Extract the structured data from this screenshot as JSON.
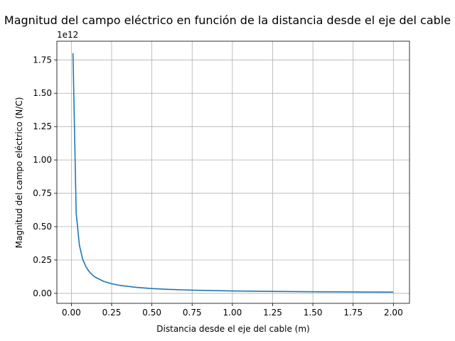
{
  "chart_data": {
    "type": "line",
    "title": "Magnitud del campo eléctrico en función de la distancia desde el eje del cable",
    "xlabel": "Distancia desde el eje del cable (m)",
    "ylabel": "Magnitud del campo eléctrico (N/C)",
    "y_offset_label": "1e12",
    "xlim": [
      -0.09,
      2.1
    ],
    "ylim": [
      -0.075,
      1.89
    ],
    "x_ticks": [
      0.0,
      0.25,
      0.5,
      0.75,
      1.0,
      1.25,
      1.5,
      1.75,
      2.0
    ],
    "x_tick_labels": [
      "0.00",
      "0.25",
      "0.50",
      "0.75",
      "1.00",
      "1.25",
      "1.50",
      "1.75",
      "2.00"
    ],
    "y_ticks": [
      0.0,
      0.25,
      0.5,
      0.75,
      1.0,
      1.25,
      1.5,
      1.75
    ],
    "y_tick_labels": [
      "0.00",
      "0.25",
      "0.50",
      "0.75",
      "1.00",
      "1.25",
      "1.50",
      "1.75"
    ],
    "grid": true,
    "series": [
      {
        "color": "#1f77b4",
        "x": [
          0.01,
          0.03,
          0.05,
          0.07,
          0.09,
          0.11,
          0.13,
          0.15,
          0.2,
          0.25,
          0.3,
          0.4,
          0.5,
          0.6,
          0.75,
          1.0,
          1.25,
          1.5,
          1.75,
          2.0
        ],
        "y": [
          1.8,
          0.6,
          0.36,
          0.257,
          0.2,
          0.164,
          0.138,
          0.12,
          0.09,
          0.072,
          0.06,
          0.045,
          0.036,
          0.03,
          0.024,
          0.018,
          0.0144,
          0.012,
          0.0103,
          0.009
        ]
      }
    ]
  }
}
